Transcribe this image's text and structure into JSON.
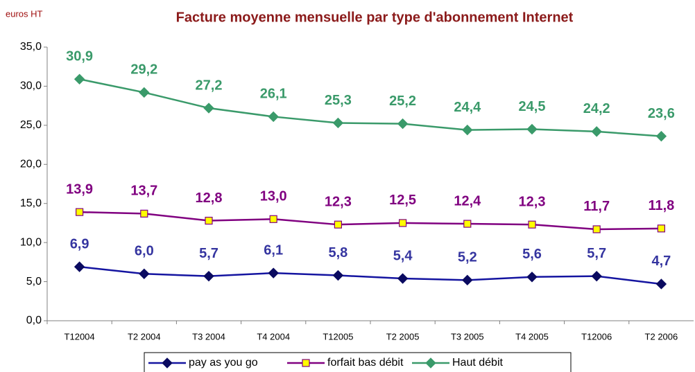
{
  "chart_data": {
    "type": "line",
    "title": "Facture moyenne mensuelle par type d'abonnement Internet",
    "y_label": "euros HT",
    "categories": [
      "T12004",
      "T2 2004",
      "T3 2004",
      "T4 2004",
      "T12005",
      "T2 2005",
      "T3 2005",
      "T4 2005",
      "T12006",
      "T2 2006"
    ],
    "series": [
      {
        "name": "pay as you go",
        "color": "#1414a0",
        "marker": "diamond",
        "marker_color": "#0a0a60",
        "label_color": "#3535a0",
        "values": [
          6.9,
          6.0,
          5.7,
          6.1,
          5.8,
          5.4,
          5.2,
          5.6,
          5.7,
          4.7
        ],
        "value_labels": [
          "6,9",
          "6,0",
          "5,7",
          "6,1",
          "5,8",
          "5,4",
          "5,2",
          "5,6",
          "5,7",
          "4,7"
        ]
      },
      {
        "name": "forfait bas débit",
        "color": "#800080",
        "marker": "square",
        "marker_color": "#ffff00",
        "label_color": "#800080",
        "values": [
          13.9,
          13.7,
          12.8,
          13.0,
          12.3,
          12.5,
          12.4,
          12.3,
          11.7,
          11.8
        ],
        "value_labels": [
          "13,9",
          "13,7",
          "12,8",
          "13,0",
          "12,3",
          "12,5",
          "12,4",
          "12,3",
          "11,7",
          "11,8"
        ]
      },
      {
        "name": "Haut débit",
        "color": "#3a9a6a",
        "marker": "diamond",
        "marker_color": "#3a9a6a",
        "label_color": "#3a9a6a",
        "values": [
          30.9,
          29.2,
          27.2,
          26.1,
          25.3,
          25.2,
          24.4,
          24.5,
          24.2,
          23.6
        ],
        "value_labels": [
          "30,9",
          "29,2",
          "27,2",
          "26,1",
          "25,3",
          "25,2",
          "24,4",
          "24,5",
          "24,2",
          "23,6"
        ]
      }
    ],
    "ylim": [
      0,
      35
    ],
    "yticks": [
      {
        "value": 0,
        "label": "0,0"
      },
      {
        "value": 5,
        "label": "5,0"
      },
      {
        "value": 10,
        "label": "10,0"
      },
      {
        "value": 15,
        "label": "15,0"
      },
      {
        "value": 20,
        "label": "20,0"
      },
      {
        "value": 25,
        "label": "25,0"
      },
      {
        "value": 30,
        "label": "30,0"
      },
      {
        "value": 35,
        "label": "35,0"
      }
    ],
    "grid": false,
    "legend": "bottom"
  }
}
